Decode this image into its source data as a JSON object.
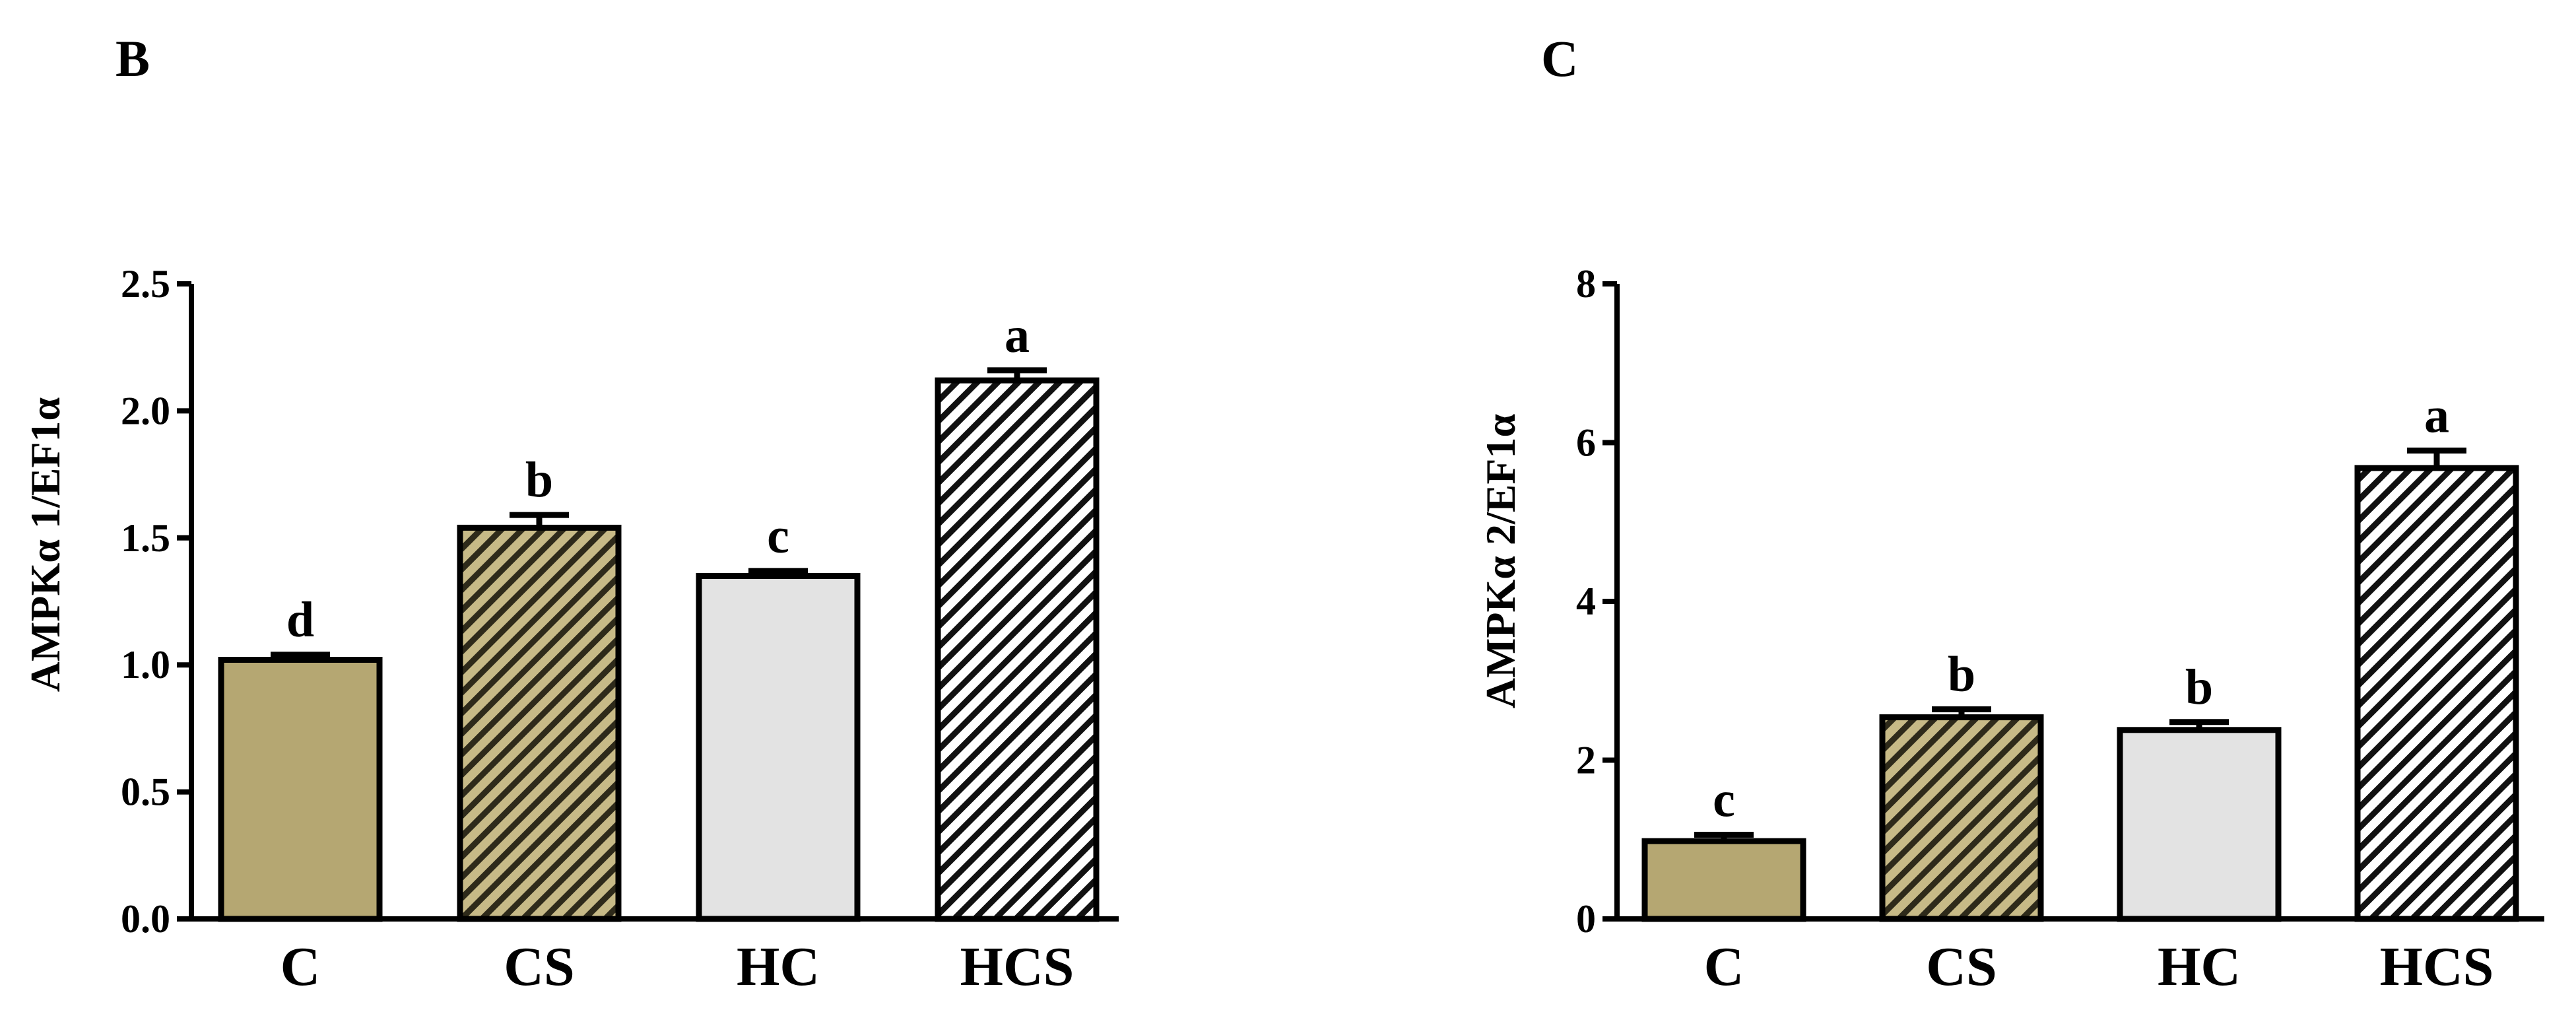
{
  "chart_data": [
    {
      "type": "bar",
      "panel": "B",
      "categories": [
        "C",
        "CS",
        "HC",
        "HCS"
      ],
      "values": [
        1.02,
        1.54,
        1.35,
        2.12
      ],
      "errors": [
        0.02,
        0.05,
        0.02,
        0.04
      ],
      "significance": [
        "d",
        "b",
        "c",
        "a"
      ],
      "ylabel": "AMPKα 1/EF1α",
      "ylim": [
        0,
        2.5
      ],
      "yticks": [
        "0.0",
        "0.5",
        "1.0",
        "1.5",
        "2.0",
        "2.5"
      ],
      "ytick_values": [
        0,
        0.5,
        1.0,
        1.5,
        2.0,
        2.5
      ],
      "fills": [
        "solid",
        "hatched",
        "solid",
        "hatched"
      ],
      "colors": [
        "#B5A772",
        "#9C8E5C",
        "#E3E3E3",
        "#FFFFFF"
      ]
    },
    {
      "type": "bar",
      "panel": "C",
      "categories": [
        "C",
        "CS",
        "HC",
        "HCS"
      ],
      "values": [
        0.98,
        2.54,
        2.38,
        5.68
      ],
      "errors": [
        0.08,
        0.1,
        0.1,
        0.22
      ],
      "significance": [
        "c",
        "b",
        "b",
        "a"
      ],
      "ylabel": "AMPKα 2/EF1α",
      "ylim": [
        0,
        8
      ],
      "yticks": [
        "0",
        "2",
        "4",
        "6",
        "8"
      ],
      "ytick_values": [
        0,
        2,
        4,
        6,
        8
      ],
      "fills": [
        "solid",
        "hatched",
        "solid",
        "hatched"
      ],
      "colors": [
        "#B5A772",
        "#9C8E5C",
        "#E3E3E3",
        "#FFFFFF"
      ]
    }
  ]
}
